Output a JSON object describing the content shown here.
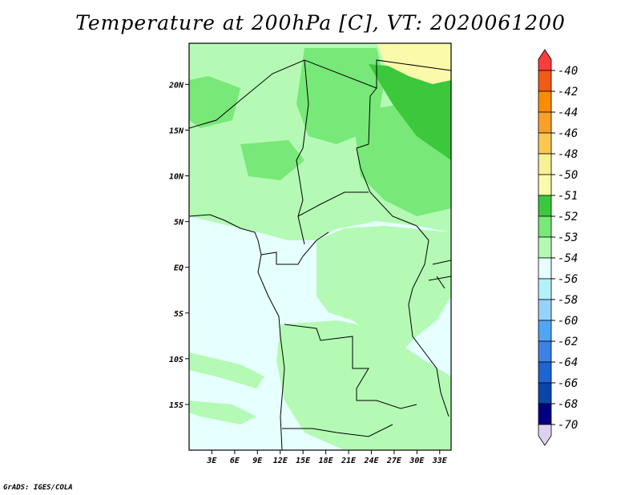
{
  "chart_data": {
    "type": "heatmap",
    "title": "Temperature at 200hPa [C], VT: 2020061200",
    "x_ticks": [
      "3E",
      "6E",
      "9E",
      "12E",
      "15E",
      "18E",
      "21E",
      "24E",
      "27E",
      "30E",
      "33E"
    ],
    "x_tick_values": [
      3,
      6,
      9,
      12,
      15,
      18,
      21,
      24,
      27,
      30,
      33
    ],
    "y_ticks": [
      "20N",
      "15N",
      "10N",
      "5N",
      "EQ",
      "5S",
      "10S",
      "15S"
    ],
    "y_tick_values": [
      20,
      15,
      10,
      5,
      0,
      -5,
      -10,
      -15
    ],
    "xlim": [
      0,
      34.5
    ],
    "ylim": [
      -20,
      24.5
    ],
    "colorbar": {
      "labels": [
        "-40",
        "-42",
        "-44",
        "-46",
        "-48",
        "-50",
        "-51",
        "-52",
        "-53",
        "-54",
        "-56",
        "-58",
        "-60",
        "-62",
        "-64",
        "-66",
        "-68",
        "-70"
      ],
      "colors": [
        "#fa3c3c",
        "#f05a14",
        "#fa8c00",
        "#faa028",
        "#fac850",
        "#faf096",
        "#fafaaa",
        "#3cc83c",
        "#78e878",
        "#b4fab4",
        "#e6ffff",
        "#b4f0fa",
        "#96d2fa",
        "#50a5f5",
        "#3c82e6",
        "#1e64d2",
        "#0a46aa",
        "#000082",
        "#dcd2f0"
      ]
    },
    "regions": {
      "coolest_band": "-54 to -56",
      "dominant_fill": "-53 to -54",
      "warmest_patch": "-50 to -51"
    }
  },
  "credit": "GrADS: IGES/COLA"
}
